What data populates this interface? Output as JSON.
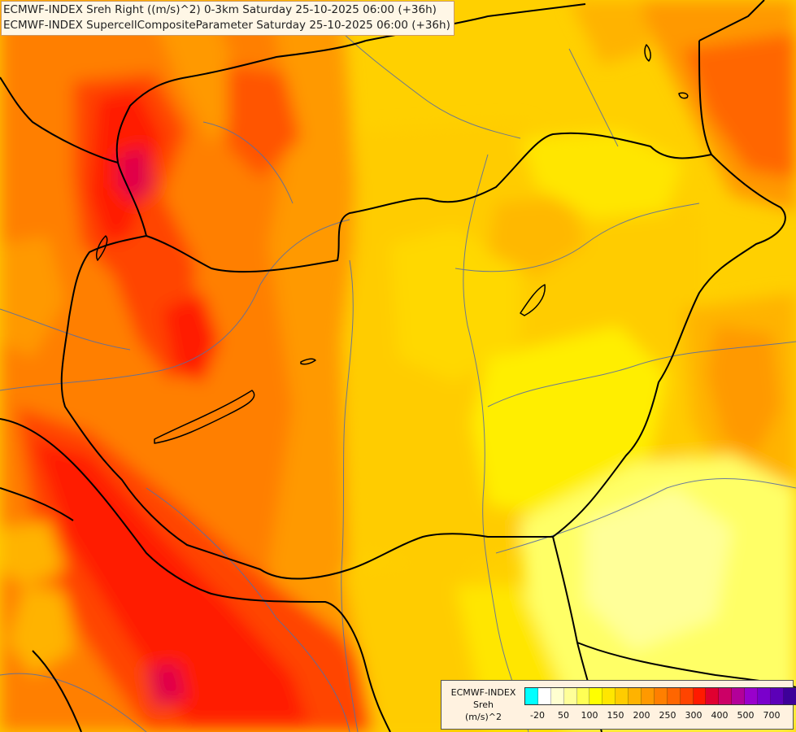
{
  "titles": {
    "line1": "ECMWF-INDEX Sreh Right ((m/s)^2) 0-3km Saturday 25-10-2025 06:00 (+36h)",
    "line2": "ECMWF-INDEX SupercellCompositeParameter Saturday 25-10-2025 06:00 (+36h)"
  },
  "legend": {
    "model": "ECMWF-INDEX",
    "variable": "Sreh",
    "unit": "(m/s)^2",
    "colors": [
      "#00ffff",
      "#ffffff",
      "#ffffd0",
      "#ffff99",
      "#ffff55",
      "#ffff00",
      "#ffe600",
      "#ffcc00",
      "#ffb300",
      "#ff9900",
      "#ff7f00",
      "#ff6600",
      "#ff4400",
      "#ff1a00",
      "#e00030",
      "#cc0066",
      "#b30099",
      "#9900cc",
      "#7a00cc",
      "#5c00b8",
      "#3d0099",
      "#1f007a"
    ],
    "tick_labels": [
      "-20",
      "50",
      "100",
      "150",
      "200",
      "250",
      "300",
      "400",
      "500",
      "700"
    ]
  },
  "map": {
    "background_color": "#ffd000",
    "border_color": "#000000",
    "river_color": "#5a6ea0"
  }
}
